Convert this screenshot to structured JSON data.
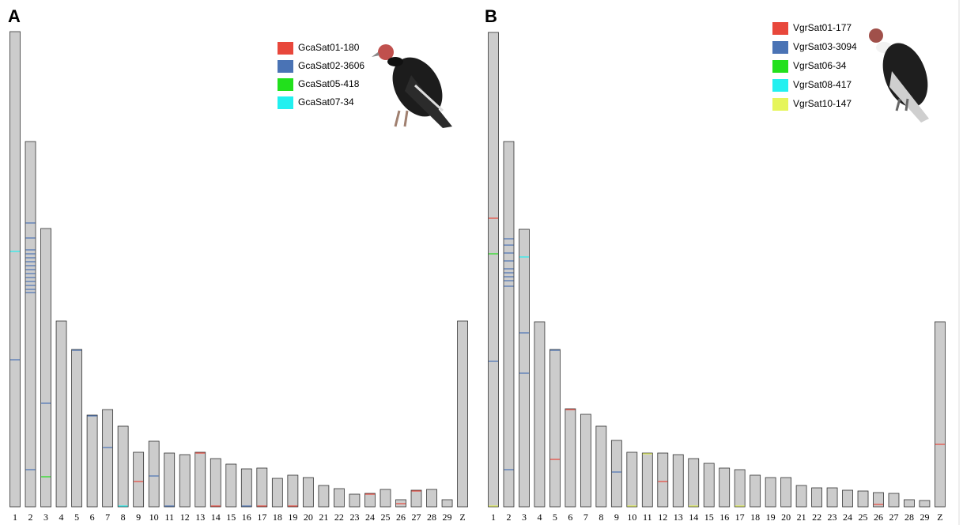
{
  "chart_data": [
    {
      "type": "ideogram",
      "title": "A",
      "categories": [
        "1",
        "2",
        "3",
        "4",
        "5",
        "6",
        "7",
        "8",
        "9",
        "10",
        "11",
        "12",
        "13",
        "14",
        "15",
        "16",
        "17",
        "18",
        "19",
        "20",
        "21",
        "22",
        "23",
        "24",
        "25",
        "26",
        "27",
        "28",
        "29",
        "Z"
      ],
      "values": [
        601,
        462,
        352,
        235,
        199,
        116,
        123,
        102,
        69,
        83,
        68,
        66,
        69,
        61,
        54,
        48,
        49,
        36,
        40,
        37,
        27,
        23,
        16,
        17,
        22,
        9,
        21,
        22,
        9,
        235
      ],
      "series": [
        {
          "name": "GcaSat01-180",
          "color": "#e8473b",
          "chromosomes": [
            "9",
            "14",
            "17",
            "19",
            "26",
            "13",
            "27",
            "24"
          ],
          "positions": [
            32,
            1,
            1,
            1,
            4,
            68,
            20,
            16
          ]
        },
        {
          "name": "GcaSat02-3606",
          "color": "#4a73b5",
          "chromosomes": [
            "2",
            "2",
            "2",
            "2",
            "2",
            "2",
            "2",
            "2",
            "2",
            "2",
            "2",
            "2",
            "2",
            "2",
            "2",
            "3",
            "5",
            "6",
            "7",
            "10",
            "1",
            "11",
            "16"
          ],
          "positions": [
            359,
            340,
            325,
            320,
            315,
            310,
            305,
            300,
            295,
            290,
            285,
            280,
            275,
            271,
            47,
            131,
            198,
            115,
            75,
            39,
            186,
            1,
            1
          ]
        },
        {
          "name": "GcaSat05-418",
          "color": "#22e01c",
          "chromosomes": [
            "3"
          ],
          "positions": [
            38
          ]
        },
        {
          "name": "GcaSat07-34",
          "color": "#22f0f0",
          "chromosomes": [
            "1",
            "8"
          ],
          "positions": [
            323,
            1
          ]
        }
      ]
    },
    {
      "type": "ideogram",
      "title": "B",
      "categories": [
        "1",
        "2",
        "3",
        "4",
        "5",
        "6",
        "7",
        "8",
        "9",
        "10",
        "11",
        "12",
        "13",
        "14",
        "15",
        "16",
        "17",
        "18",
        "19",
        "20",
        "21",
        "22",
        "23",
        "24",
        "25",
        "26",
        "27",
        "28",
        "29",
        "Z"
      ],
      "values": [
        600,
        462,
        351,
        234,
        199,
        124,
        117,
        102,
        84,
        69,
        68,
        68,
        66,
        61,
        55,
        49,
        47,
        40,
        37,
        37,
        27,
        24,
        24,
        21,
        20,
        18,
        17,
        9,
        8,
        234
      ],
      "series": [
        {
          "name": "VgrSat01-177",
          "color": "#e8473b",
          "chromosomes": [
            "1",
            "5",
            "6",
            "12",
            "26",
            "Z"
          ],
          "positions": [
            365,
            60,
            123,
            32,
            3,
            79
          ]
        },
        {
          "name": "VgrSat03-3094",
          "color": "#4a73b5",
          "chromosomes": [
            "2",
            "2",
            "2",
            "2",
            "2",
            "2",
            "2",
            "2",
            "2",
            "2",
            "3",
            "3",
            "1",
            "9",
            "5"
          ],
          "positions": [
            339,
            331,
            321,
            311,
            301,
            296,
            291,
            286,
            279,
            47,
            220,
            169,
            184,
            44,
            198
          ]
        },
        {
          "name": "VgrSat06-34",
          "color": "#22e01c",
          "chromosomes": [
            "1"
          ],
          "positions": [
            320
          ]
        },
        {
          "name": "VgrSat08-417",
          "color": "#22f0f0",
          "chromosomes": [
            "3"
          ],
          "positions": [
            316
          ]
        },
        {
          "name": "VgrSat10-147",
          "color": "#e6f55a",
          "chromosomes": [
            "11",
            "10",
            "14",
            "17",
            "1"
          ],
          "positions": [
            67,
            1,
            1,
            1,
            1
          ]
        }
      ]
    }
  ]
}
